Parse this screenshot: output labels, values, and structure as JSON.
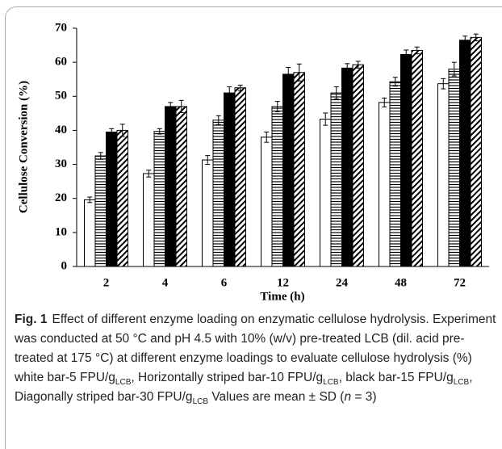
{
  "chart_data": {
    "type": "bar",
    "y_label": "Cellulose Conversion (%)",
    "x_label": "Time (h)",
    "categories": [
      "2",
      "4",
      "6",
      "12",
      "24",
      "48",
      "72"
    ],
    "series": [
      {
        "color": "#ffffff",
        "pattern": null,
        "values": [
          19.6,
          27.3,
          31.3,
          38.0,
          43.3,
          48.2,
          53.7
        ],
        "errors": [
          0.8,
          1.0,
          1.3,
          1.5,
          1.8,
          1.3,
          1.5
        ]
      },
      {
        "color": "#000000",
        "pattern": "horizontal",
        "values": [
          32.5,
          39.7,
          43.0,
          47.0,
          51.0,
          54.3,
          58.0
        ],
        "errors": [
          1.0,
          0.8,
          1.3,
          1.5,
          1.8,
          1.3,
          2.0
        ]
      },
      {
        "color": "#000000",
        "pattern": null,
        "values": [
          39.5,
          47.0,
          51.0,
          56.5,
          58.3,
          62.3,
          66.5
        ],
        "errors": [
          1.0,
          1.2,
          1.8,
          2.0,
          1.3,
          1.3,
          1.2
        ]
      },
      {
        "color": "#000000",
        "pattern": "diagonal",
        "values": [
          40.0,
          47.0,
          52.5,
          57.0,
          59.3,
          63.5,
          67.3
        ],
        "errors": [
          1.8,
          1.8,
          0.8,
          2.5,
          1.0,
          1.0,
          1.0
        ]
      }
    ],
    "ylim": [
      0,
      70
    ],
    "yticks": [
      0,
      10,
      20,
      30,
      40,
      50,
      60,
      70
    ],
    "grid": false
  },
  "caption": {
    "label": "Fig. 1",
    "segments": [
      "Effect of different enzyme loading on enzymatic cellulose hydrolysis. Experiment was conducted at 50 °C and pH 4.5 with 10% (w/v) pre-treated LCB (dil. acid pre-treated at 175 °C) at different enzyme loadings to evaluate cellulose hydrolysis (%) white bar-5 FPU/g",
      {
        "sub": "LCB"
      },
      ", Horizontally striped bar-10 FPU/g",
      {
        "sub": "LCB"
      },
      ", black bar-15 FPU/g",
      {
        "sub": "LCB"
      },
      ", Diagonally striped bar-30 FPU/g",
      {
        "sub": "LCB"
      },
      " Values are mean ± SD (",
      {
        "em": "n"
      },
      " = 3)"
    ]
  }
}
